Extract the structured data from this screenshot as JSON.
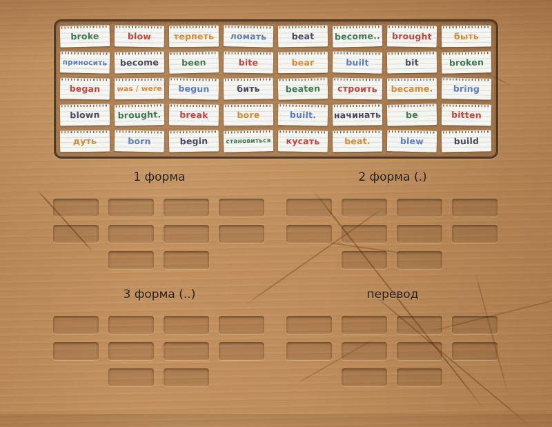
{
  "palette": {
    "green": "#3c7a50",
    "red": "#c7423a",
    "orange": "#d9882f",
    "blue": "#5a7cc2",
    "navy": "#4c4760",
    "label_color": "#221c12",
    "paper": "#f6f6f0",
    "wood": "#c2915f"
  },
  "cards": [
    {
      "text": "broke",
      "ink": "green"
    },
    {
      "text": "blow",
      "ink": "red"
    },
    {
      "text": "терпеть",
      "ink": "orange"
    },
    {
      "text": "ломать",
      "ink": "blue"
    },
    {
      "text": "beat",
      "ink": "navy"
    },
    {
      "text": "become..",
      "ink": "green"
    },
    {
      "text": "brought",
      "ink": "red"
    },
    {
      "text": "быть",
      "ink": "orange"
    },
    {
      "text": "приносить",
      "ink": "blue"
    },
    {
      "text": "become",
      "ink": "navy"
    },
    {
      "text": "been",
      "ink": "green"
    },
    {
      "text": "bite",
      "ink": "red"
    },
    {
      "text": "bear",
      "ink": "orange"
    },
    {
      "text": "built",
      "ink": "blue"
    },
    {
      "text": "bit",
      "ink": "navy"
    },
    {
      "text": "broken",
      "ink": "green"
    },
    {
      "text": "began",
      "ink": "red"
    },
    {
      "text": "was / were",
      "ink": "orange"
    },
    {
      "text": "begun",
      "ink": "blue"
    },
    {
      "text": "бить",
      "ink": "navy"
    },
    {
      "text": "beaten",
      "ink": "green"
    },
    {
      "text": "строить",
      "ink": "red"
    },
    {
      "text": "became.",
      "ink": "orange"
    },
    {
      "text": "bring",
      "ink": "blue"
    },
    {
      "text": "blown",
      "ink": "navy"
    },
    {
      "text": "brought.",
      "ink": "green"
    },
    {
      "text": "break",
      "ink": "red"
    },
    {
      "text": "bore",
      "ink": "orange"
    },
    {
      "text": "built.",
      "ink": "blue"
    },
    {
      "text": "начинать",
      "ink": "navy"
    },
    {
      "text": "be",
      "ink": "green"
    },
    {
      "text": "bitten",
      "ink": "red"
    },
    {
      "text": "дуть",
      "ink": "orange"
    },
    {
      "text": "born",
      "ink": "blue"
    },
    {
      "text": "begin",
      "ink": "navy"
    },
    {
      "text": "становиться",
      "ink": "green"
    },
    {
      "text": "кусать",
      "ink": "red"
    },
    {
      "text": "beat.",
      "ink": "orange"
    },
    {
      "text": "blew",
      "ink": "blue"
    },
    {
      "text": "build",
      "ink": "navy"
    }
  ],
  "groups": [
    {
      "label": "1 форма",
      "slot_rows": [
        4,
        4,
        2
      ]
    },
    {
      "label": "2 форма (.)",
      "slot_rows": [
        4,
        4,
        2
      ]
    },
    {
      "label": "3 форма (..)",
      "slot_rows": [
        4,
        4,
        2
      ]
    },
    {
      "label": "перевод",
      "slot_rows": [
        4,
        4,
        2
      ]
    }
  ]
}
